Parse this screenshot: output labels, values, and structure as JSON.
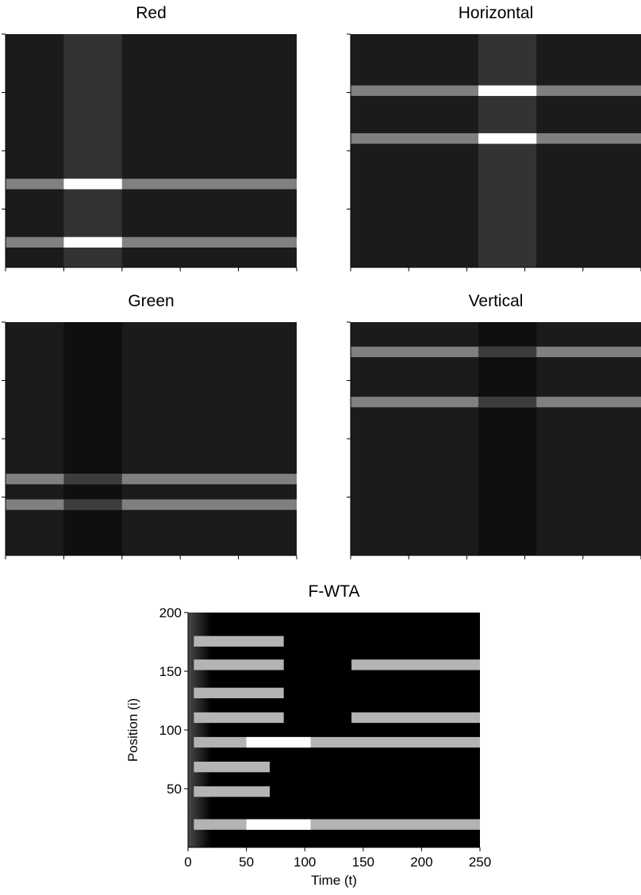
{
  "chart_data": [
    {
      "type": "heatmap",
      "title": "Red",
      "xlabel": "",
      "ylabel": "",
      "xlim": [
        0,
        250
      ],
      "ylim": [
        0,
        200
      ],
      "grid": false,
      "show_tick_labels": false,
      "xticks": [
        0,
        50,
        100,
        150,
        200,
        250
      ],
      "yticks": [
        50,
        100,
        150,
        200
      ],
      "background": "#1b1b1b",
      "bands": [
        {
          "x": [
            50,
            100
          ],
          "y": [
            0,
            200
          ],
          "color": "#333333"
        },
        {
          "x": [
            0,
            250
          ],
          "y": [
            67,
            76
          ],
          "color": "#808080"
        },
        {
          "x": [
            50,
            100
          ],
          "y": [
            67,
            76
          ],
          "color": "#ffffff"
        },
        {
          "x": [
            0,
            250
          ],
          "y": [
            17,
            26
          ],
          "color": "#808080"
        },
        {
          "x": [
            50,
            100
          ],
          "y": [
            17,
            26
          ],
          "color": "#ffffff"
        }
      ]
    },
    {
      "type": "heatmap",
      "title": "Horizontal",
      "xlabel": "",
      "ylabel": "",
      "xlim": [
        0,
        250
      ],
      "ylim": [
        0,
        200
      ],
      "grid": false,
      "show_tick_labels": false,
      "xticks": [
        0,
        50,
        100,
        150,
        200,
        250
      ],
      "yticks": [
        50,
        100,
        150,
        200
      ],
      "background": "#1b1b1b",
      "bands": [
        {
          "x": [
            110,
            160
          ],
          "y": [
            0,
            200
          ],
          "color": "#333333"
        },
        {
          "x": [
            0,
            250
          ],
          "y": [
            147,
            156
          ],
          "color": "#808080"
        },
        {
          "x": [
            110,
            160
          ],
          "y": [
            147,
            156
          ],
          "color": "#ffffff"
        },
        {
          "x": [
            0,
            250
          ],
          "y": [
            106,
            115
          ],
          "color": "#808080"
        },
        {
          "x": [
            110,
            160
          ],
          "y": [
            106,
            115
          ],
          "color": "#ffffff"
        }
      ]
    },
    {
      "type": "heatmap",
      "title": "Green",
      "xlabel": "",
      "ylabel": "",
      "xlim": [
        0,
        250
      ],
      "ylim": [
        0,
        200
      ],
      "grid": false,
      "show_tick_labels": false,
      "xticks": [
        0,
        50,
        100,
        150,
        200,
        250
      ],
      "yticks": [
        50,
        100,
        150,
        200
      ],
      "background": "#1b1b1b",
      "bands": [
        {
          "x": [
            50,
            100
          ],
          "y": [
            0,
            200
          ],
          "color": "#0f0f0f"
        },
        {
          "x": [
            0,
            250
          ],
          "y": [
            61,
            70
          ],
          "color": "#808080"
        },
        {
          "x": [
            50,
            100
          ],
          "y": [
            61,
            70
          ],
          "color": "#3c3c3c"
        },
        {
          "x": [
            0,
            250
          ],
          "y": [
            39,
            48
          ],
          "color": "#808080"
        },
        {
          "x": [
            50,
            100
          ],
          "y": [
            39,
            48
          ],
          "color": "#3c3c3c"
        }
      ]
    },
    {
      "type": "heatmap",
      "title": "Vertical",
      "xlabel": "",
      "ylabel": "",
      "xlim": [
        0,
        250
      ],
      "ylim": [
        0,
        200
      ],
      "grid": false,
      "show_tick_labels": false,
      "xticks": [
        0,
        50,
        100,
        150,
        200,
        250
      ],
      "yticks": [
        50,
        100,
        150,
        200
      ],
      "background": "#1b1b1b",
      "bands": [
        {
          "x": [
            110,
            160
          ],
          "y": [
            0,
            200
          ],
          "color": "#0f0f0f"
        },
        {
          "x": [
            0,
            250
          ],
          "y": [
            170,
            179
          ],
          "color": "#808080"
        },
        {
          "x": [
            110,
            160
          ],
          "y": [
            170,
            179
          ],
          "color": "#3c3c3c"
        },
        {
          "x": [
            0,
            250
          ],
          "y": [
            127,
            136
          ],
          "color": "#808080"
        },
        {
          "x": [
            110,
            160
          ],
          "y": [
            127,
            136
          ],
          "color": "#3c3c3c"
        }
      ]
    },
    {
      "type": "heatmap",
      "title": "F-WTA",
      "xlabel": "Time (t)",
      "ylabel": "Position (i)",
      "xlim": [
        0,
        250
      ],
      "ylim": [
        0,
        200
      ],
      "grid": false,
      "show_tick_labels": true,
      "xticks": [
        0,
        50,
        100,
        150,
        200,
        250
      ],
      "yticks": [
        50,
        100,
        150,
        200
      ],
      "background": "#000000",
      "onset_fade": {
        "x": [
          0,
          20
        ],
        "y": [
          0,
          200
        ],
        "color": "#4a4a4a"
      },
      "bands": [
        {
          "x": [
            5,
            82
          ],
          "y": [
            171,
            180
          ],
          "color": "#b4b4b4"
        },
        {
          "x": [
            5,
            82
          ],
          "y": [
            151,
            160
          ],
          "color": "#b4b4b4"
        },
        {
          "x": [
            140,
            250
          ],
          "y": [
            151,
            160
          ],
          "color": "#b4b4b4"
        },
        {
          "x": [
            5,
            82
          ],
          "y": [
            127,
            136
          ],
          "color": "#b4b4b4"
        },
        {
          "x": [
            5,
            82
          ],
          "y": [
            106,
            115
          ],
          "color": "#b4b4b4"
        },
        {
          "x": [
            140,
            250
          ],
          "y": [
            106,
            115
          ],
          "color": "#b4b4b4"
        },
        {
          "x": [
            5,
            250
          ],
          "y": [
            85,
            94
          ],
          "color": "#b4b4b4"
        },
        {
          "x": [
            50,
            105
          ],
          "y": [
            85,
            94
          ],
          "color": "#ffffff"
        },
        {
          "x": [
            5,
            70
          ],
          "y": [
            64,
            73
          ],
          "color": "#b4b4b4"
        },
        {
          "x": [
            5,
            70
          ],
          "y": [
            43,
            52
          ],
          "color": "#b4b4b4"
        },
        {
          "x": [
            5,
            250
          ],
          "y": [
            15,
            24
          ],
          "color": "#b4b4b4"
        },
        {
          "x": [
            50,
            105
          ],
          "y": [
            15,
            24
          ],
          "color": "#ffffff"
        }
      ]
    }
  ]
}
